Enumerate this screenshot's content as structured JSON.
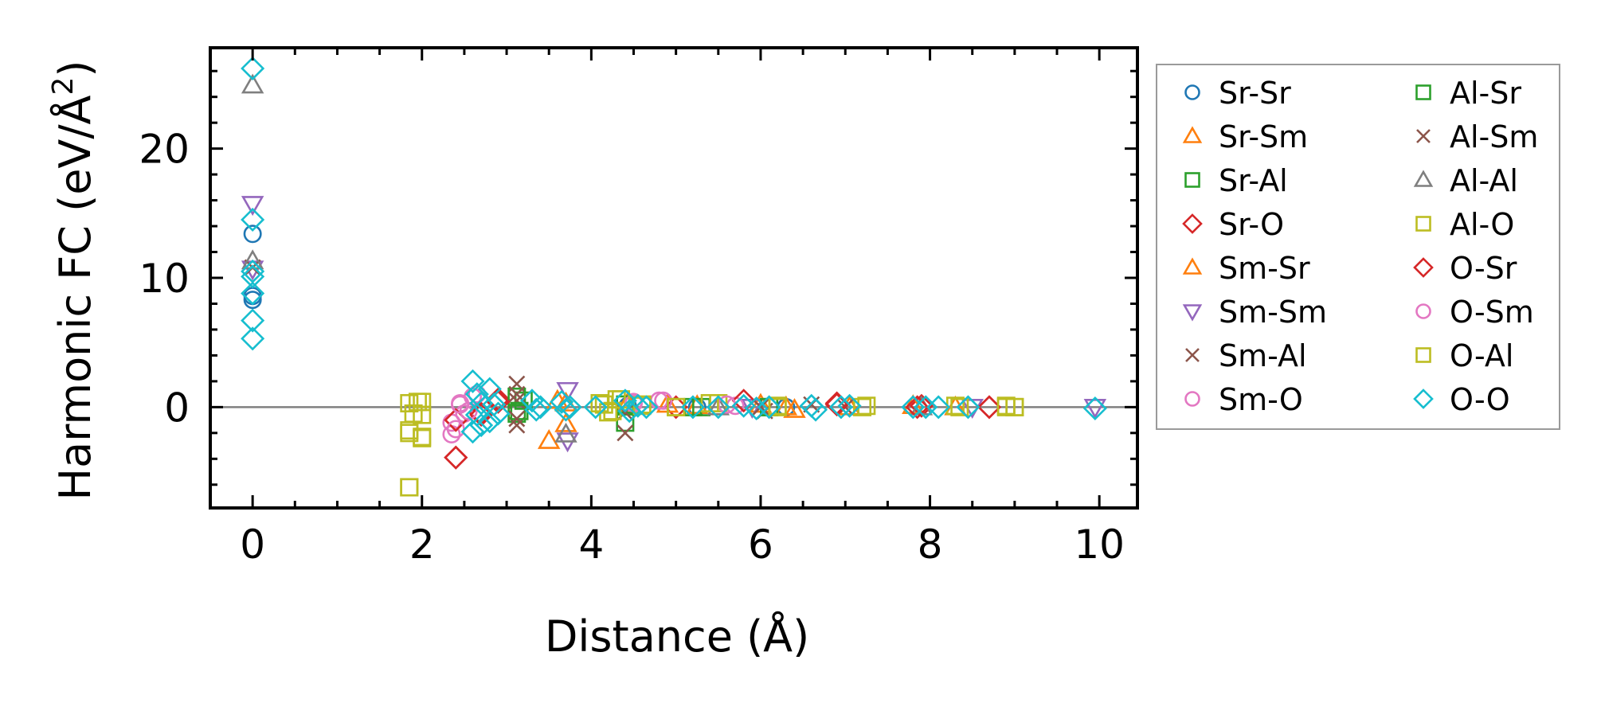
{
  "chart_data": {
    "type": "scatter",
    "xlabel": "Distance (Å)",
    "ylabel_main": "Harmonic FC (eV/Å",
    "ylabel_sup": "2",
    "ylabel_close": ")",
    "xlim": [
      -0.5,
      10.45
    ],
    "ylim": [
      -7.8,
      27.8
    ],
    "xticks": [
      0,
      2,
      4,
      6,
      8,
      10
    ],
    "xtick_labels": [
      "0",
      "2",
      "4",
      "6",
      "8",
      "10"
    ],
    "yticks": [
      0,
      10,
      20
    ],
    "ytick_labels": [
      "0",
      "10",
      "20"
    ],
    "zero_line": true,
    "legend_position": "outside-right",
    "series": [
      {
        "name": "Sr-Sr",
        "marker": "circle",
        "color": "#1f77b4",
        "points": [
          [
            0,
            13.4
          ],
          [
            0,
            8.6
          ],
          [
            0,
            8.3
          ],
          [
            4.43,
            0.1
          ],
          [
            5.25,
            0.0
          ],
          [
            6.3,
            0.0
          ]
        ]
      },
      {
        "name": "Sr-Sm",
        "marker": "triangle",
        "color": "#ff7f0e",
        "points": [
          [
            3.5,
            -2.6
          ],
          [
            3.6,
            0.5
          ],
          [
            4.43,
            0.3
          ],
          [
            5.25,
            0.1
          ],
          [
            6.3,
            0.0
          ],
          [
            7.05,
            0.0
          ]
        ]
      },
      {
        "name": "Sr-Al",
        "marker": "square",
        "color": "#2ca02c",
        "points": [
          [
            3.12,
            -0.5
          ],
          [
            3.2,
            0.5
          ],
          [
            4.4,
            -1.2
          ],
          [
            5.2,
            0.0
          ],
          [
            6.1,
            0.0
          ]
        ]
      },
      {
        "name": "Sr-O",
        "marker": "diamond",
        "color": "#d62728",
        "points": [
          [
            2.4,
            -1.0
          ],
          [
            2.4,
            -3.9
          ],
          [
            2.7,
            -0.5
          ],
          [
            2.9,
            0.6
          ],
          [
            5.0,
            0.0
          ],
          [
            6.9,
            0.3
          ],
          [
            7.9,
            0.1
          ],
          [
            8.7,
            0.0
          ]
        ]
      },
      {
        "name": "Sm-Sr",
        "marker": "triangle",
        "color": "#ff7f0e",
        "points": [
          [
            3.7,
            0.3
          ],
          [
            3.7,
            -1.3
          ],
          [
            4.9,
            0.2
          ],
          [
            6.0,
            0.2
          ],
          [
            6.4,
            -0.2
          ],
          [
            7.8,
            0.1
          ],
          [
            8.3,
            0.0
          ]
        ]
      },
      {
        "name": "Sm-Sm",
        "marker": "tri_down",
        "color": "#9467bd",
        "points": [
          [
            0,
            15.7
          ],
          [
            0,
            10.7
          ],
          [
            3.72,
            1.3
          ],
          [
            3.72,
            -2.6
          ],
          [
            5.9,
            0.0
          ],
          [
            8.5,
            0.0
          ],
          [
            9.95,
            0.0
          ]
        ]
      },
      {
        "name": "Sm-Al",
        "marker": "x",
        "color": "#8c564b",
        "points": [
          [
            0,
            10.8
          ],
          [
            3.12,
            1.8
          ],
          [
            3.12,
            -1.4
          ],
          [
            3.12,
            0.5
          ],
          [
            4.4,
            -2.0
          ],
          [
            6.05,
            -0.3
          ],
          [
            6.6,
            0.2
          ]
        ]
      },
      {
        "name": "Sm-O",
        "marker": "circle",
        "color": "#e377c2",
        "points": [
          [
            2.35,
            -1.2
          ],
          [
            2.35,
            -2.1
          ],
          [
            2.45,
            0.3
          ],
          [
            2.5,
            -0.5
          ],
          [
            2.6,
            0.8
          ],
          [
            4.5,
            0.4
          ],
          [
            4.8,
            0.5
          ],
          [
            5.7,
            0.1
          ]
        ]
      },
      {
        "name": "Al-Sr",
        "marker": "square",
        "color": "#2ca02c",
        "points": [
          [
            3.12,
            0.8
          ],
          [
            3.15,
            -0.3
          ],
          [
            4.4,
            0.2
          ],
          [
            5.3,
            0.0
          ],
          [
            6.1,
            0.0
          ]
        ]
      },
      {
        "name": "Al-Sm",
        "marker": "x",
        "color": "#8c564b",
        "points": [
          [
            3.12,
            1.0
          ],
          [
            3.12,
            -0.9
          ],
          [
            4.4,
            -0.4
          ],
          [
            6.0,
            0.0
          ],
          [
            7.0,
            0.0
          ]
        ]
      },
      {
        "name": "Al-Al",
        "marker": "triangle",
        "color": "#7f7f7f",
        "points": [
          [
            0,
            24.9
          ],
          [
            0,
            11.3
          ],
          [
            3.7,
            -2.1
          ],
          [
            5.5,
            0.0
          ],
          [
            7.9,
            0.0
          ]
        ]
      },
      {
        "name": "Al-O",
        "marker": "square",
        "color": "#bcbd22",
        "points": [
          [
            1.85,
            -6.2
          ],
          [
            1.85,
            -2.0
          ],
          [
            1.85,
            0.3
          ],
          [
            1.9,
            -0.5
          ],
          [
            2.0,
            0.4
          ],
          [
            2.0,
            -2.3
          ],
          [
            4.1,
            0.3
          ],
          [
            4.2,
            -0.4
          ],
          [
            4.3,
            0.6
          ],
          [
            4.6,
            0.2
          ],
          [
            5.0,
            0.0
          ],
          [
            5.5,
            0.3
          ],
          [
            6.2,
            0.1
          ],
          [
            7.2,
            0.0
          ],
          [
            8.3,
            0.1
          ],
          [
            8.9,
            0.0
          ],
          [
            9.0,
            0.0
          ]
        ]
      },
      {
        "name": "O-Sr",
        "marker": "diamond",
        "color": "#d62728",
        "points": [
          [
            2.4,
            -1.0
          ],
          [
            2.4,
            -3.9
          ],
          [
            2.7,
            -0.6
          ],
          [
            2.9,
            0.4
          ],
          [
            5.8,
            0.5
          ],
          [
            6.9,
            0.2
          ],
          [
            7.85,
            0.0
          ],
          [
            8.7,
            0.0
          ]
        ]
      },
      {
        "name": "O-Sm",
        "marker": "circle",
        "color": "#e377c2",
        "points": [
          [
            2.4,
            -1.7
          ],
          [
            2.45,
            0.2
          ],
          [
            2.55,
            -0.3
          ],
          [
            2.65,
            1.0
          ],
          [
            4.5,
            0.3
          ],
          [
            4.85,
            0.5
          ],
          [
            5.6,
            0.2
          ]
        ]
      },
      {
        "name": "O-Al",
        "marker": "square",
        "color": "#bcbd22",
        "points": [
          [
            1.85,
            -6.2
          ],
          [
            1.85,
            -1.8
          ],
          [
            1.95,
            0.4
          ],
          [
            2.0,
            -0.6
          ],
          [
            2.0,
            -2.4
          ],
          [
            4.15,
            0.2
          ],
          [
            4.25,
            -0.3
          ],
          [
            4.35,
            0.6
          ],
          [
            4.6,
            0.1
          ],
          [
            5.0,
            0.0
          ],
          [
            5.4,
            0.3
          ],
          [
            6.2,
            0.0
          ],
          [
            7.25,
            0.1
          ],
          [
            8.35,
            0.0
          ],
          [
            8.9,
            0.1
          ],
          [
            9.0,
            0.0
          ]
        ]
      },
      {
        "name": "O-O",
        "marker": "diamond",
        "color": "#17becf",
        "points": [
          [
            0,
            26.2
          ],
          [
            0,
            14.5
          ],
          [
            0,
            10.5
          ],
          [
            0,
            10.1
          ],
          [
            0,
            8.8
          ],
          [
            0,
            6.7
          ],
          [
            0,
            5.3
          ],
          [
            2.6,
            2.0
          ],
          [
            2.6,
            -1.9
          ],
          [
            2.65,
            1.0
          ],
          [
            2.65,
            -0.6
          ],
          [
            2.7,
            0.3
          ],
          [
            2.7,
            -1.4
          ],
          [
            2.8,
            1.4
          ],
          [
            2.8,
            -1.1
          ],
          [
            2.85,
            0.2
          ],
          [
            2.9,
            -0.5
          ],
          [
            3.3,
            0.5
          ],
          [
            3.35,
            -0.2
          ],
          [
            3.4,
            0.0
          ],
          [
            3.65,
            0.4
          ],
          [
            3.7,
            -0.2
          ],
          [
            3.75,
            0.0
          ],
          [
            4.05,
            0.0
          ],
          [
            4.4,
            0.5
          ],
          [
            4.45,
            -0.3
          ],
          [
            4.55,
            0.1
          ],
          [
            4.65,
            0.0
          ],
          [
            5.2,
            0.0
          ],
          [
            5.5,
            0.0
          ],
          [
            5.8,
            0.1
          ],
          [
            5.95,
            -0.1
          ],
          [
            6.1,
            0.0
          ],
          [
            6.6,
            0.1
          ],
          [
            6.65,
            -0.2
          ],
          [
            6.95,
            0.0
          ],
          [
            7.05,
            0.1
          ],
          [
            7.8,
            0.0
          ],
          [
            7.95,
            0.0
          ],
          [
            8.1,
            0.0
          ],
          [
            8.45,
            0.0
          ],
          [
            9.95,
            -0.1
          ]
        ]
      }
    ]
  }
}
